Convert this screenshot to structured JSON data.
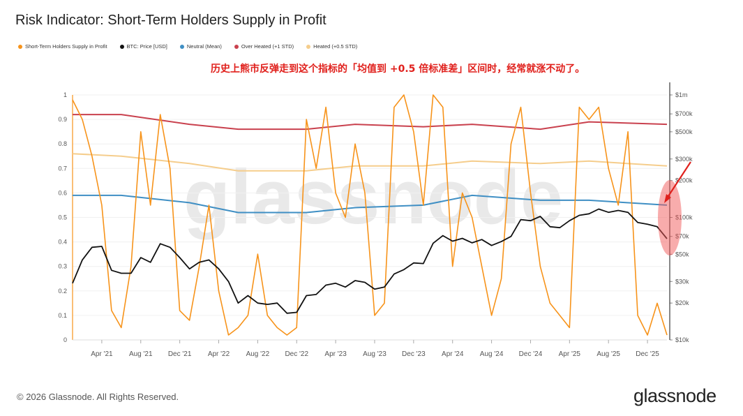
{
  "title": "Risk Indicator: Short-Term Holders Supply in Profit",
  "annotation": "历史上熊市反弹走到这个指标的「均值到 +0.5 倍标准差」区间时，经常就涨不动了。",
  "footer": "© 2026 Glassnode. All Rights Reserved.",
  "logo": "glassnode",
  "watermark": "glassnode",
  "colors": {
    "sth": "#f7931a",
    "btc": "#111111",
    "neutral": "#3f8fc4",
    "over_heated": "#c9414e",
    "heated": "#f5cd8c",
    "highlight": "#f25a5a",
    "arrow": "#e0201c"
  },
  "chart_data": {
    "type": "line",
    "title": "Risk Indicator: Short-Term Holders Supply in Profit",
    "legend_position": "top-left",
    "x_ticks": [
      "Apr '21",
      "Aug '21",
      "Dec '21",
      "Apr '22",
      "Aug '22",
      "Dec '22",
      "Apr '23",
      "Aug '23",
      "Dec '23",
      "Apr '24",
      "Aug '24",
      "Dec '24",
      "Apr '25",
      "Aug '25",
      "Dec '25"
    ],
    "x_range": [
      "2021-01",
      "2026-02"
    ],
    "y_left": {
      "range": [
        0,
        1
      ],
      "ticks": [
        "0",
        "0.1",
        "0.2",
        "0.3",
        "0.4",
        "0.5",
        "0.6",
        "0.7",
        "0.8",
        "0.9",
        "1"
      ]
    },
    "y_right": {
      "scale": "log",
      "range": [
        10000,
        1000000
      ],
      "ticks": [
        "$10k",
        "$20k",
        "$30k",
        "$50k",
        "$70k",
        "$100k",
        "$200k",
        "$300k",
        "$500k",
        "$700k",
        "$1m"
      ]
    },
    "series": [
      {
        "name": "Short-Term Holders Supply in Profit",
        "key": "sth",
        "axis": "left",
        "x": [
          "2021-01",
          "2021-02",
          "2021-03",
          "2021-04",
          "2021-05",
          "2021-06",
          "2021-07",
          "2021-08",
          "2021-09",
          "2021-10",
          "2021-11",
          "2021-12",
          "2022-01",
          "2022-02",
          "2022-03",
          "2022-04",
          "2022-05",
          "2022-06",
          "2022-07",
          "2022-08",
          "2022-09",
          "2022-10",
          "2022-11",
          "2022-12",
          "2023-01",
          "2023-02",
          "2023-03",
          "2023-04",
          "2023-05",
          "2023-06",
          "2023-07",
          "2023-08",
          "2023-09",
          "2023-10",
          "2023-11",
          "2023-12",
          "2024-01",
          "2024-02",
          "2024-03",
          "2024-04",
          "2024-05",
          "2024-06",
          "2024-07",
          "2024-08",
          "2024-09",
          "2024-10",
          "2024-11",
          "2024-12",
          "2025-01",
          "2025-02",
          "2025-03",
          "2025-04",
          "2025-05",
          "2025-06",
          "2025-07",
          "2025-08",
          "2025-09",
          "2025-10",
          "2025-11",
          "2025-12",
          "2026-01",
          "2026-02"
        ],
        "values": [
          0.98,
          0.9,
          0.75,
          0.55,
          0.12,
          0.05,
          0.3,
          0.85,
          0.55,
          0.92,
          0.7,
          0.12,
          0.08,
          0.3,
          0.55,
          0.2,
          0.02,
          0.05,
          0.1,
          0.35,
          0.1,
          0.05,
          0.02,
          0.05,
          0.9,
          0.7,
          0.95,
          0.6,
          0.5,
          0.8,
          0.6,
          0.1,
          0.15,
          0.95,
          1.0,
          0.85,
          0.55,
          1.0,
          0.95,
          0.3,
          0.6,
          0.5,
          0.3,
          0.1,
          0.25,
          0.8,
          0.95,
          0.6,
          0.3,
          0.15,
          0.1,
          0.05,
          0.95,
          0.9,
          0.95,
          0.7,
          0.55,
          0.85,
          0.1,
          0.02,
          0.15,
          0.02
        ]
      },
      {
        "name": "BTC: Price [USD]",
        "key": "btc",
        "axis": "right",
        "x": [
          "2021-01",
          "2021-02",
          "2021-03",
          "2021-04",
          "2021-05",
          "2021-06",
          "2021-07",
          "2021-08",
          "2021-09",
          "2021-10",
          "2021-11",
          "2021-12",
          "2022-01",
          "2022-02",
          "2022-03",
          "2022-04",
          "2022-05",
          "2022-06",
          "2022-07",
          "2022-08",
          "2022-09",
          "2022-10",
          "2022-11",
          "2022-12",
          "2023-01",
          "2023-02",
          "2023-03",
          "2023-04",
          "2023-05",
          "2023-06",
          "2023-07",
          "2023-08",
          "2023-09",
          "2023-10",
          "2023-11",
          "2023-12",
          "2024-01",
          "2024-02",
          "2024-03",
          "2024-04",
          "2024-05",
          "2024-06",
          "2024-07",
          "2024-08",
          "2024-09",
          "2024-10",
          "2024-11",
          "2024-12",
          "2025-01",
          "2025-02",
          "2025-03",
          "2025-04",
          "2025-05",
          "2025-06",
          "2025-07",
          "2025-08",
          "2025-09",
          "2025-10",
          "2025-11",
          "2025-12",
          "2026-01",
          "2026-02"
        ],
        "values": [
          29000,
          45000,
          57000,
          58000,
          37000,
          35000,
          35000,
          47000,
          43000,
          61000,
          57000,
          47000,
          38000,
          43000,
          45000,
          38000,
          30000,
          20000,
          23000,
          20000,
          19500,
          20000,
          16500,
          16800,
          23000,
          23500,
          28000,
          29000,
          27000,
          30500,
          29500,
          26000,
          27000,
          34500,
          37500,
          42500,
          42000,
          61500,
          71000,
          64000,
          67500,
          62000,
          66000,
          59000,
          63500,
          70000,
          96000,
          94000,
          102000,
          84000,
          82500,
          94000,
          104000,
          107000,
          117000,
          110000,
          114000,
          110000,
          91000,
          88000,
          84000,
          67000
        ]
      },
      {
        "name": "Neutral (Mean)",
        "key": "neutral",
        "axis": "left",
        "x": [
          "2021-01",
          "2021-06",
          "2022-01",
          "2022-06",
          "2023-01",
          "2023-06",
          "2024-01",
          "2024-06",
          "2025-01",
          "2025-06",
          "2026-02"
        ],
        "values": [
          0.59,
          0.59,
          0.56,
          0.52,
          0.52,
          0.54,
          0.55,
          0.59,
          0.57,
          0.57,
          0.55
        ]
      },
      {
        "name": "Over Heated (+1 STD)",
        "key": "over",
        "axis": "left",
        "x": [
          "2021-01",
          "2021-06",
          "2022-01",
          "2022-06",
          "2023-01",
          "2023-06",
          "2024-01",
          "2024-06",
          "2025-01",
          "2025-06",
          "2026-02"
        ],
        "values": [
          0.92,
          0.92,
          0.88,
          0.86,
          0.86,
          0.88,
          0.87,
          0.88,
          0.86,
          0.89,
          0.88
        ]
      },
      {
        "name": "Heated (+0.5 STD)",
        "key": "heated",
        "axis": "left",
        "x": [
          "2021-01",
          "2021-06",
          "2022-01",
          "2022-06",
          "2023-01",
          "2023-06",
          "2024-01",
          "2024-06",
          "2025-01",
          "2025-06",
          "2026-02"
        ],
        "values": [
          0.76,
          0.75,
          0.72,
          0.69,
          0.69,
          0.71,
          0.71,
          0.73,
          0.72,
          0.73,
          0.71
        ]
      }
    ]
  }
}
